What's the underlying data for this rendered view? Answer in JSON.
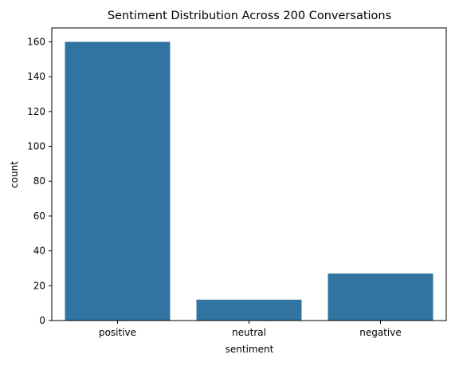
{
  "chart_data": {
    "type": "bar",
    "title": "Sentiment Distribution Across 200 Conversations",
    "xlabel": "sentiment",
    "ylabel": "count",
    "categories": [
      "positive",
      "neutral",
      "negative"
    ],
    "values": [
      160,
      12,
      27
    ],
    "ylim": [
      0,
      168
    ],
    "yticks": [
      0,
      20,
      40,
      60,
      80,
      100,
      120,
      140,
      160
    ],
    "grid": false,
    "bar_color": "#3274a1"
  }
}
